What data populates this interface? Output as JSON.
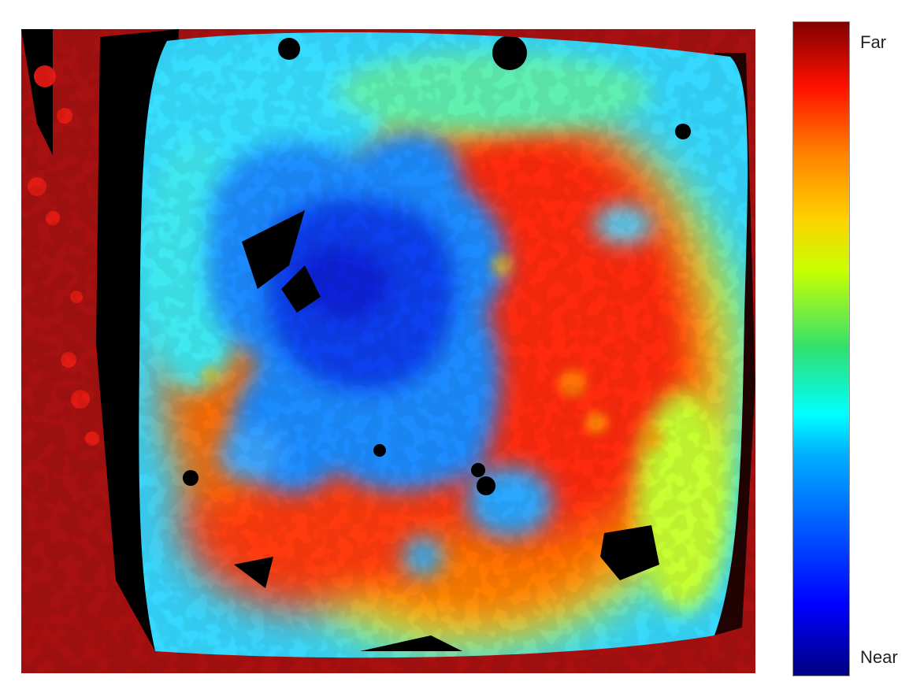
{
  "colorbar": {
    "top_label": "Far",
    "bottom_label": "Near",
    "colormap": "jet",
    "stops": [
      "#00007f",
      "#0000ff",
      "#0080ff",
      "#00ffff",
      "#80ff80",
      "#ffff00",
      "#ff8000",
      "#ff0000",
      "#7f0000"
    ]
  },
  "image": {
    "description_type": "depth map",
    "invalid_color": "#000000",
    "background_color": "#ffffff"
  }
}
